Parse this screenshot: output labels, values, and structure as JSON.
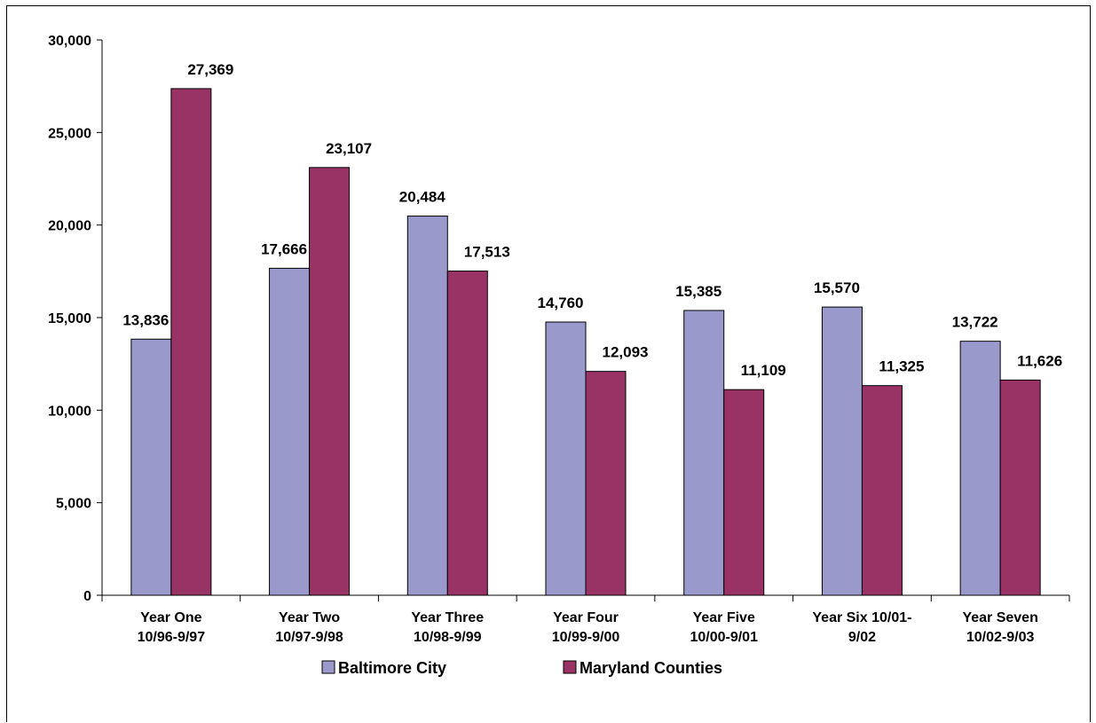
{
  "chart_data": {
    "type": "bar",
    "categories": [
      [
        "Year One",
        "10/96-9/97"
      ],
      [
        "Year Two",
        "10/97-9/98"
      ],
      [
        "Year Three",
        "10/98-9/99"
      ],
      [
        "Year Four",
        "10/99-9/00"
      ],
      [
        "Year Five",
        "10/00-9/01"
      ],
      [
        "Year Six 10/01-",
        "9/02"
      ],
      [
        "Year Seven",
        "10/02-9/03"
      ]
    ],
    "series": [
      {
        "name": "Baltimore City",
        "color": "#9999cc",
        "values": [
          13836,
          17666,
          20484,
          14760,
          15385,
          15570,
          13722
        ],
        "labels": [
          "13,836",
          "17,666",
          "20,484",
          "14,760",
          "15,385",
          "15,570",
          "13,722"
        ]
      },
      {
        "name": "Maryland Counties",
        "color": "#993366",
        "values": [
          27369,
          23107,
          17513,
          12093,
          11109,
          11325,
          11626
        ],
        "labels": [
          "27,369",
          "23,107",
          "17,513",
          "12,093",
          "11,109",
          "11,325",
          "11,626"
        ]
      }
    ],
    "yticks": [
      {
        "value": 0,
        "label": "0"
      },
      {
        "value": 5000,
        "label": "5,000"
      },
      {
        "value": 10000,
        "label": "10,000"
      },
      {
        "value": 15000,
        "label": "15,000"
      },
      {
        "value": 20000,
        "label": "20,000"
      },
      {
        "value": 25000,
        "label": "25,000"
      },
      {
        "value": 30000,
        "label": "30,000"
      }
    ],
    "ylim": [
      0,
      30000
    ],
    "grid": false,
    "legend_position": "bottom"
  }
}
